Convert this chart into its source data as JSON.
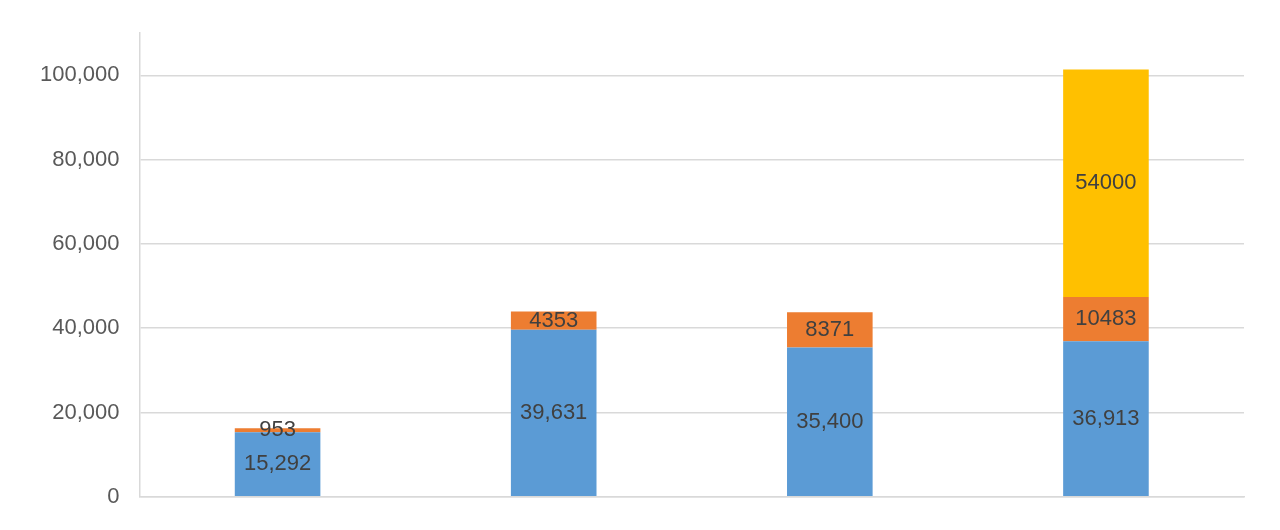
{
  "chart_data": {
    "type": "bar",
    "stacked": true,
    "categories": [
      null,
      null,
      null,
      null
    ],
    "series": [
      {
        "color": "#5b9bd5",
        "values": [
          15292,
          39631,
          35400,
          36913
        ],
        "value_labels": [
          "15,292",
          "39,631",
          "35,400",
          "36,913"
        ]
      },
      {
        "color": "#ed7d31",
        "values": [
          953,
          4353,
          8371,
          10483
        ],
        "value_labels": [
          "953",
          "4353",
          "8371",
          "10483"
        ]
      },
      {
        "color": "#ffc000",
        "values": [
          null,
          null,
          null,
          54000
        ],
        "value_labels": [
          null,
          null,
          null,
          "54000"
        ]
      }
    ],
    "ylim": [
      0,
      110000
    ],
    "yticks": [
      0,
      {
        "value": 20000,
        "label": "20,000"
      },
      {
        "value": 40000,
        "label": "40,000"
      },
      {
        "value": 60000,
        "label": "60,000"
      },
      {
        "value": 80000,
        "label": "80,000"
      },
      {
        "value": 100000,
        "label": "100,000"
      }
    ],
    "grid": "y",
    "legend": false
  }
}
